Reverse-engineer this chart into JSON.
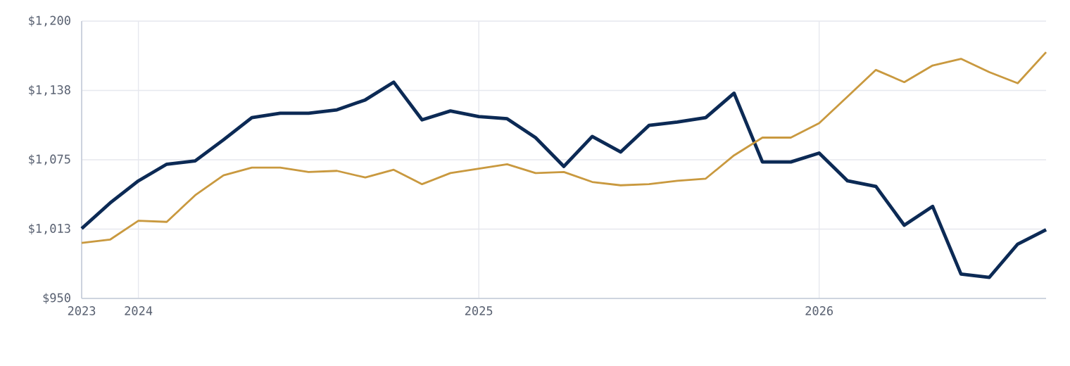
{
  "chart_data": {
    "type": "line",
    "x": [
      "2023-11",
      "2023-12",
      "2024-01",
      "2024-02",
      "2024-03",
      "2024-04",
      "2024-05",
      "2024-06",
      "2024-07",
      "2024-08",
      "2024-09",
      "2024-10",
      "2024-11",
      "2024-12",
      "2025-01",
      "2025-02",
      "2025-03",
      "2025-04",
      "2025-05",
      "2025-06",
      "2025-07",
      "2025-08",
      "2025-09",
      "2025-10",
      "2025-11",
      "2025-12",
      "2026-01",
      "2026-02",
      "2026-03",
      "2026-04",
      "2026-05",
      "2026-06",
      "2026-07",
      "2026-08",
      "2026-09"
    ],
    "series": [
      {
        "color": "#0c2a55",
        "values": [
          1013,
          1036,
          1056,
          1071,
          1074,
          1093,
          1113,
          1117,
          1117,
          1120,
          1129,
          1145,
          1111,
          1119,
          1114,
          1112,
          1095,
          1069,
          1096,
          1082,
          1106,
          1109,
          1113,
          1135,
          1073,
          1073,
          1081,
          1056,
          1051,
          1016,
          1033,
          972,
          969,
          999,
          1012
        ]
      },
      {
        "color": "#c9993f",
        "values": [
          1000,
          1003,
          1020,
          1019,
          1043,
          1061,
          1068,
          1068,
          1064,
          1065,
          1059,
          1066,
          1053,
          1063,
          1067,
          1071,
          1063,
          1064,
          1055,
          1052,
          1053,
          1056,
          1058,
          1079,
          1095,
          1095,
          1108,
          1132,
          1156,
          1145,
          1160,
          1166,
          1154,
          1144,
          1172
        ]
      }
    ],
    "xlim": [
      "2023-11",
      "2026-09"
    ],
    "xticks": [
      {
        "value": "2023-11",
        "label": "2023"
      },
      {
        "value": "2024-01",
        "label": "2024"
      },
      {
        "value": "2025-01",
        "label": "2025"
      },
      {
        "value": "2026-01",
        "label": "2026"
      }
    ],
    "ylim": [
      950,
      1200
    ],
    "yticks": [
      {
        "value": 950,
        "label": "$950"
      },
      {
        "value": 1012.5,
        "label": "$1,013"
      },
      {
        "value": 1075,
        "label": "$1,075"
      },
      {
        "value": 1137.5,
        "label": "$1,138"
      },
      {
        "value": 1200,
        "label": "$1,200"
      }
    ],
    "grid": true
  }
}
